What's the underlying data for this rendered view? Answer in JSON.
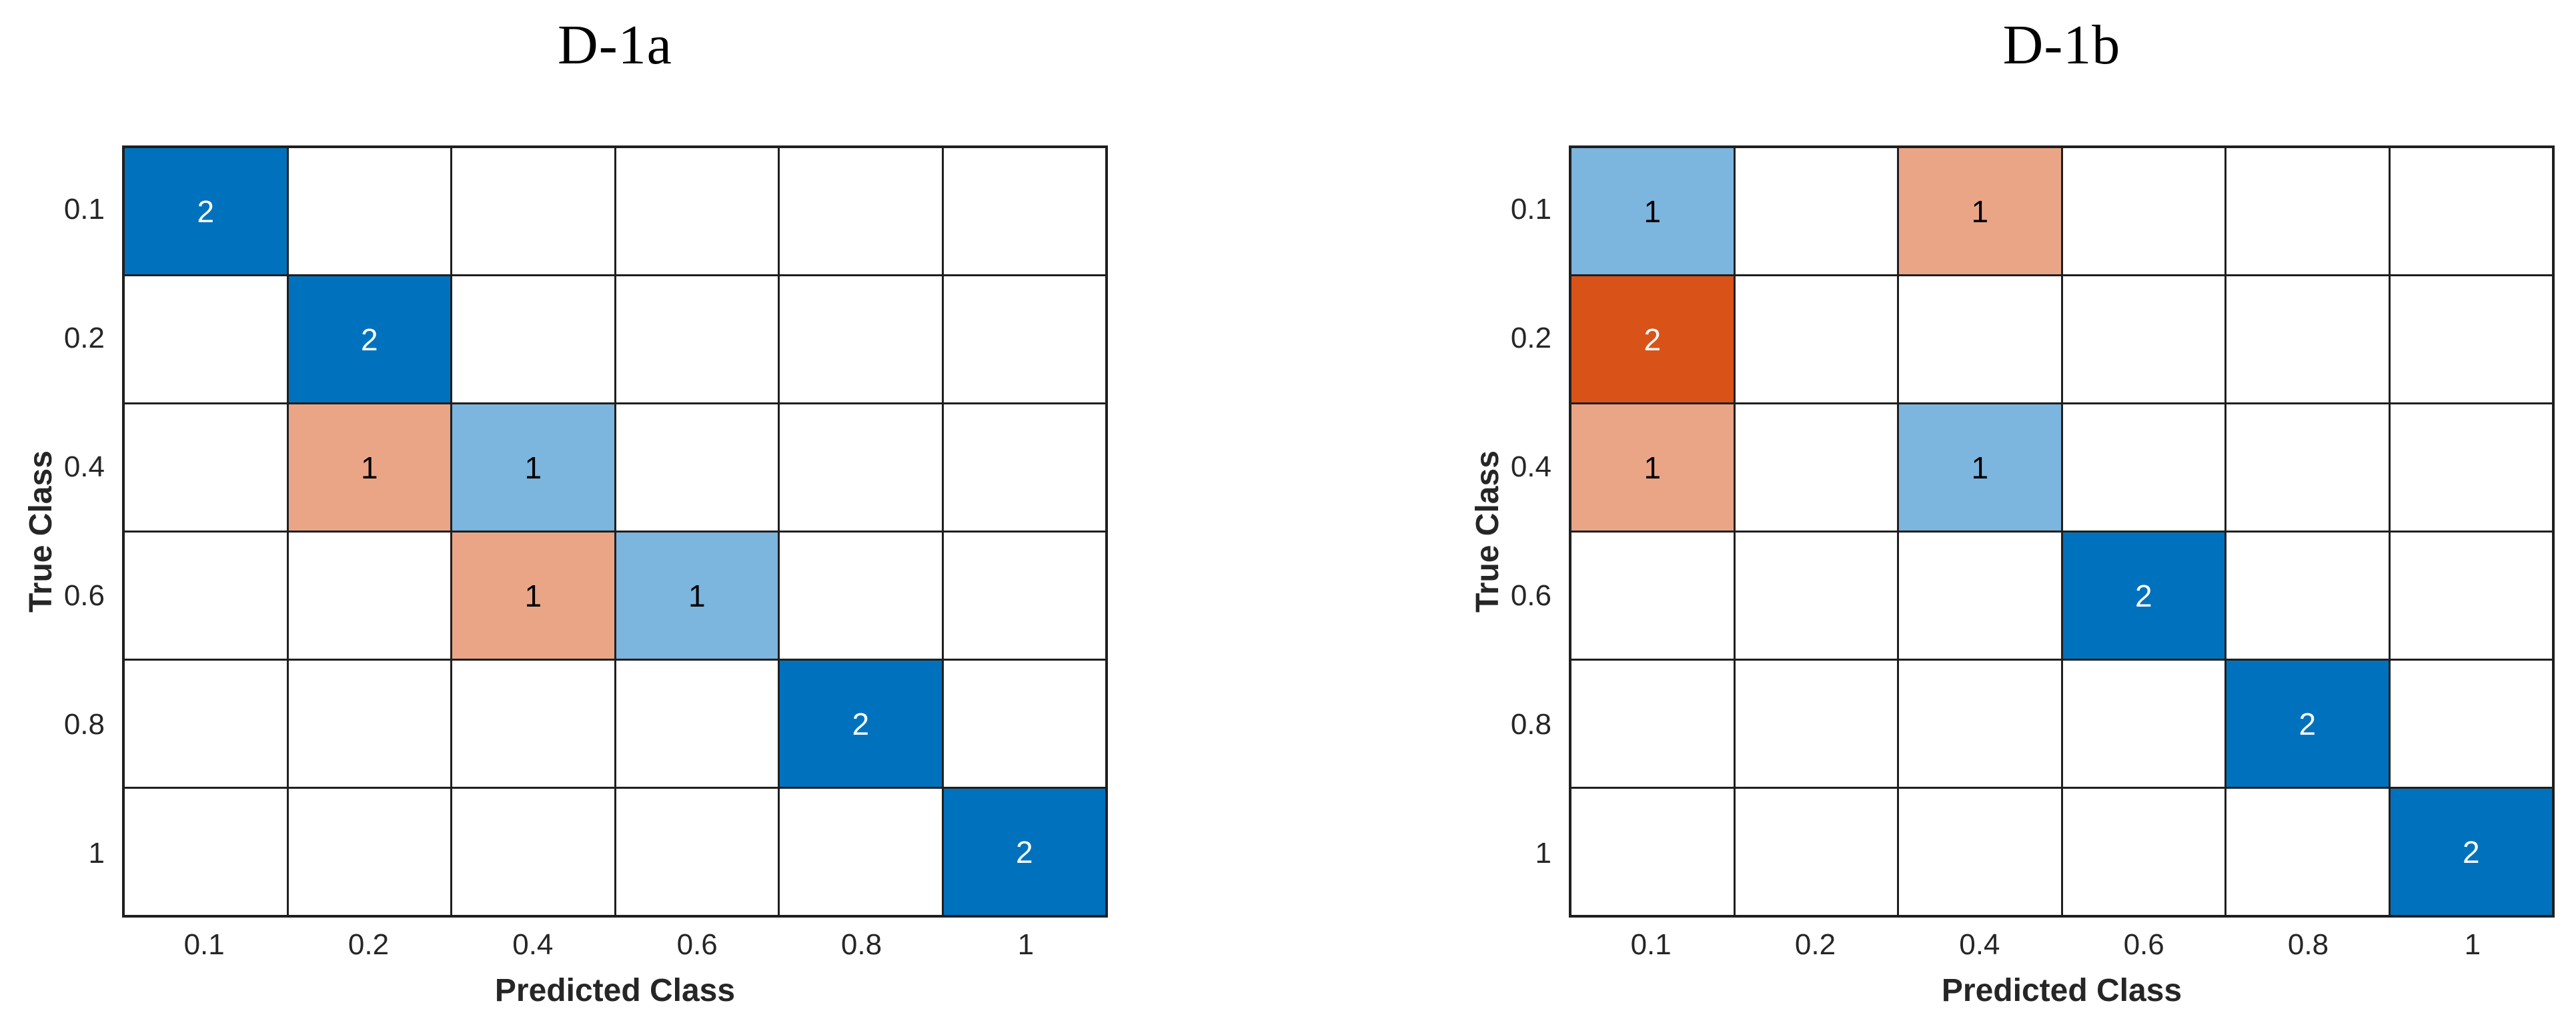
{
  "colors": {
    "diagonal_full": "#0072BD",
    "diagonal_partial": "#7CB5DE",
    "off_diagonal_full": "#D95319",
    "off_diagonal_partial": "#EAA587",
    "empty_cell": "#FFFFFF",
    "grid_line": "#1F1F1F",
    "text_on_dark": "#FFFFFF",
    "text_on_light": "#000000",
    "axis_text": "#262626"
  },
  "chart_data": [
    {
      "type": "heatmap",
      "subtype": "confusion-matrix",
      "title": "D-1a",
      "xlabel": "Predicted Class",
      "ylabel": "True Class",
      "x_tick_labels": [
        "0.1",
        "0.2",
        "0.4",
        "0.6",
        "0.8",
        "1"
      ],
      "y_tick_labels": [
        "0.1",
        "0.2",
        "0.4",
        "0.6",
        "0.8",
        "1"
      ],
      "max_count": 2,
      "grid": true,
      "matrix": [
        [
          2,
          0,
          0,
          0,
          0,
          0
        ],
        [
          0,
          2,
          0,
          0,
          0,
          0
        ],
        [
          0,
          1,
          1,
          0,
          0,
          0
        ],
        [
          0,
          0,
          1,
          1,
          0,
          0
        ],
        [
          0,
          0,
          0,
          0,
          2,
          0
        ],
        [
          0,
          0,
          0,
          0,
          0,
          2
        ]
      ],
      "cells": [
        {
          "true_class": "0.1",
          "predicted_class": "0.1",
          "count": 2
        },
        {
          "true_class": "0.2",
          "predicted_class": "0.2",
          "count": 2
        },
        {
          "true_class": "0.4",
          "predicted_class": "0.2",
          "count": 1
        },
        {
          "true_class": "0.4",
          "predicted_class": "0.4",
          "count": 1
        },
        {
          "true_class": "0.6",
          "predicted_class": "0.4",
          "count": 1
        },
        {
          "true_class": "0.6",
          "predicted_class": "0.6",
          "count": 1
        },
        {
          "true_class": "0.8",
          "predicted_class": "0.8",
          "count": 2
        },
        {
          "true_class": "1",
          "predicted_class": "1",
          "count": 2
        }
      ]
    },
    {
      "type": "heatmap",
      "subtype": "confusion-matrix",
      "title": "D-1b",
      "xlabel": "Predicted Class",
      "ylabel": "True Class",
      "x_tick_labels": [
        "0.1",
        "0.2",
        "0.4",
        "0.6",
        "0.8",
        "1"
      ],
      "y_tick_labels": [
        "0.1",
        "0.2",
        "0.4",
        "0.6",
        "0.8",
        "1"
      ],
      "max_count": 2,
      "grid": true,
      "matrix": [
        [
          1,
          0,
          1,
          0,
          0,
          0
        ],
        [
          2,
          0,
          0,
          0,
          0,
          0
        ],
        [
          1,
          0,
          1,
          0,
          0,
          0
        ],
        [
          0,
          0,
          0,
          2,
          0,
          0
        ],
        [
          0,
          0,
          0,
          0,
          2,
          0
        ],
        [
          0,
          0,
          0,
          0,
          0,
          2
        ]
      ],
      "cells": [
        {
          "true_class": "0.1",
          "predicted_class": "0.1",
          "count": 1
        },
        {
          "true_class": "0.1",
          "predicted_class": "0.4",
          "count": 1
        },
        {
          "true_class": "0.2",
          "predicted_class": "0.1",
          "count": 2
        },
        {
          "true_class": "0.4",
          "predicted_class": "0.1",
          "count": 1
        },
        {
          "true_class": "0.4",
          "predicted_class": "0.4",
          "count": 1
        },
        {
          "true_class": "0.6",
          "predicted_class": "0.6",
          "count": 2
        },
        {
          "true_class": "0.8",
          "predicted_class": "0.8",
          "count": 2
        },
        {
          "true_class": "1",
          "predicted_class": "1",
          "count": 2
        }
      ]
    }
  ]
}
